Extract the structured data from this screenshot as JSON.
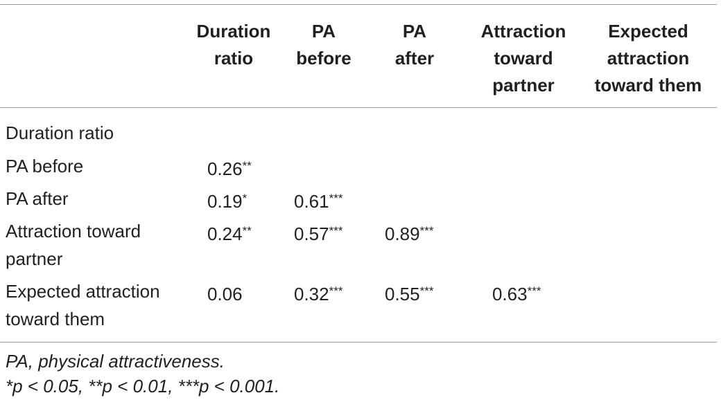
{
  "table": {
    "columns": [
      {
        "lines": [
          "Duration",
          "ratio"
        ]
      },
      {
        "lines": [
          "PA",
          "before"
        ]
      },
      {
        "lines": [
          "PA",
          "after"
        ]
      },
      {
        "lines": [
          "Attraction",
          "toward",
          "partner"
        ]
      },
      {
        "lines": [
          "Expected",
          "attraction",
          "toward them"
        ]
      }
    ],
    "rows": [
      {
        "label_lines": [
          "Duration ratio"
        ],
        "cells": []
      },
      {
        "label_lines": [
          "PA before"
        ],
        "cells": [
          {
            "value": "0.26",
            "stars": "**"
          }
        ]
      },
      {
        "label_lines": [
          "PA after"
        ],
        "cells": [
          {
            "value": "0.19",
            "stars": "*"
          },
          {
            "value": "0.61",
            "stars": "***"
          }
        ]
      },
      {
        "label_lines": [
          "Attraction toward",
          "partner"
        ],
        "cells": [
          {
            "value": "0.24",
            "stars": "**"
          },
          {
            "value": "0.57",
            "stars": "***"
          },
          {
            "value": "0.89",
            "stars": "***"
          }
        ]
      },
      {
        "label_lines": [
          "Expected attraction",
          "toward them"
        ],
        "cells": [
          {
            "value": "0.06",
            "stars": ""
          },
          {
            "value": "0.32",
            "stars": "***"
          },
          {
            "value": "0.55",
            "stars": "***"
          },
          {
            "value": "0.63",
            "stars": "***"
          }
        ]
      }
    ]
  },
  "footnotes": {
    "abbreviation": "PA, physical attractiveness.",
    "significance": "*p < 0.05, **p < 0.01, ***p < 0.001."
  }
}
